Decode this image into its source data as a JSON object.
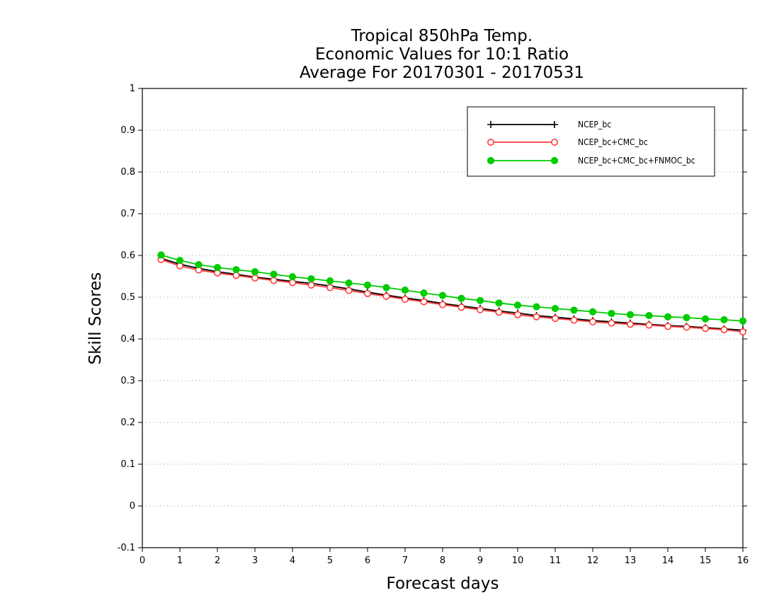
{
  "chart_data": {
    "type": "line",
    "title_lines": [
      "Tropical 850hPa Temp.",
      "Economic Values for 10:1 Ratio",
      "Average For 20170301 - 20170531"
    ],
    "xlabel": "Forecast days",
    "ylabel": "Skill Scores",
    "xlim": [
      0,
      16
    ],
    "ylim": [
      -0.1,
      1
    ],
    "x_ticks": [
      0,
      1,
      2,
      3,
      4,
      5,
      6,
      7,
      8,
      9,
      10,
      11,
      12,
      13,
      14,
      15,
      16
    ],
    "x_tick_labels": [
      "0",
      "1",
      "2",
      "3",
      "4",
      "5",
      "6",
      "7",
      "8",
      "9",
      "10",
      "11",
      "12",
      "13",
      "14",
      "15",
      "16"
    ],
    "y_ticks": [
      -0.1,
      0,
      0.1,
      0.2,
      0.3,
      0.4,
      0.5,
      0.6,
      0.7,
      0.8,
      0.9,
      1
    ],
    "y_tick_labels": [
      "-0.1",
      "0",
      "0.1",
      "0.2",
      "0.3",
      "0.4",
      "0.5",
      "0.6",
      "0.7",
      "0.8",
      "0.9",
      "1"
    ],
    "grid": "horizontal dotted",
    "legend_position": "top-right",
    "x": [
      0.5,
      1,
      1.5,
      2,
      2.5,
      3,
      3.5,
      4,
      4.5,
      5,
      5.5,
      6,
      6.5,
      7,
      7.5,
      8,
      8.5,
      9,
      9.5,
      10,
      10.5,
      11,
      11.5,
      12,
      12.5,
      13,
      13.5,
      14,
      14.5,
      15,
      15.5,
      16
    ],
    "series": [
      {
        "name": "NCEP_bc",
        "color": "#000000",
        "marker": "plus",
        "values": [
          0.593,
          0.579,
          0.569,
          0.561,
          0.555,
          0.548,
          0.543,
          0.538,
          0.533,
          0.527,
          0.52,
          0.512,
          0.505,
          0.498,
          0.492,
          0.485,
          0.479,
          0.473,
          0.467,
          0.462,
          0.456,
          0.452,
          0.448,
          0.444,
          0.441,
          0.438,
          0.435,
          0.432,
          0.43,
          0.427,
          0.424,
          0.421
        ]
      },
      {
        "name": "NCEP_bc+CMC_bc",
        "color": "#ff3b3b",
        "marker": "open-circle",
        "values": [
          0.59,
          0.575,
          0.565,
          0.558,
          0.552,
          0.546,
          0.54,
          0.535,
          0.529,
          0.523,
          0.516,
          0.509,
          0.502,
          0.495,
          0.489,
          0.482,
          0.476,
          0.47,
          0.464,
          0.458,
          0.453,
          0.449,
          0.445,
          0.441,
          0.438,
          0.435,
          0.433,
          0.43,
          0.428,
          0.425,
          0.422,
          0.417
        ]
      },
      {
        "name": "NCEP_bc+CMC_bc+FNMOC_bc",
        "color": "#00cc00",
        "marker": "filled-circle",
        "values": [
          0.601,
          0.588,
          0.578,
          0.571,
          0.566,
          0.561,
          0.555,
          0.549,
          0.544,
          0.539,
          0.534,
          0.529,
          0.523,
          0.517,
          0.51,
          0.504,
          0.497,
          0.492,
          0.486,
          0.481,
          0.477,
          0.473,
          0.469,
          0.465,
          0.461,
          0.458,
          0.456,
          0.453,
          0.451,
          0.448,
          0.446,
          0.443
        ]
      }
    ]
  }
}
